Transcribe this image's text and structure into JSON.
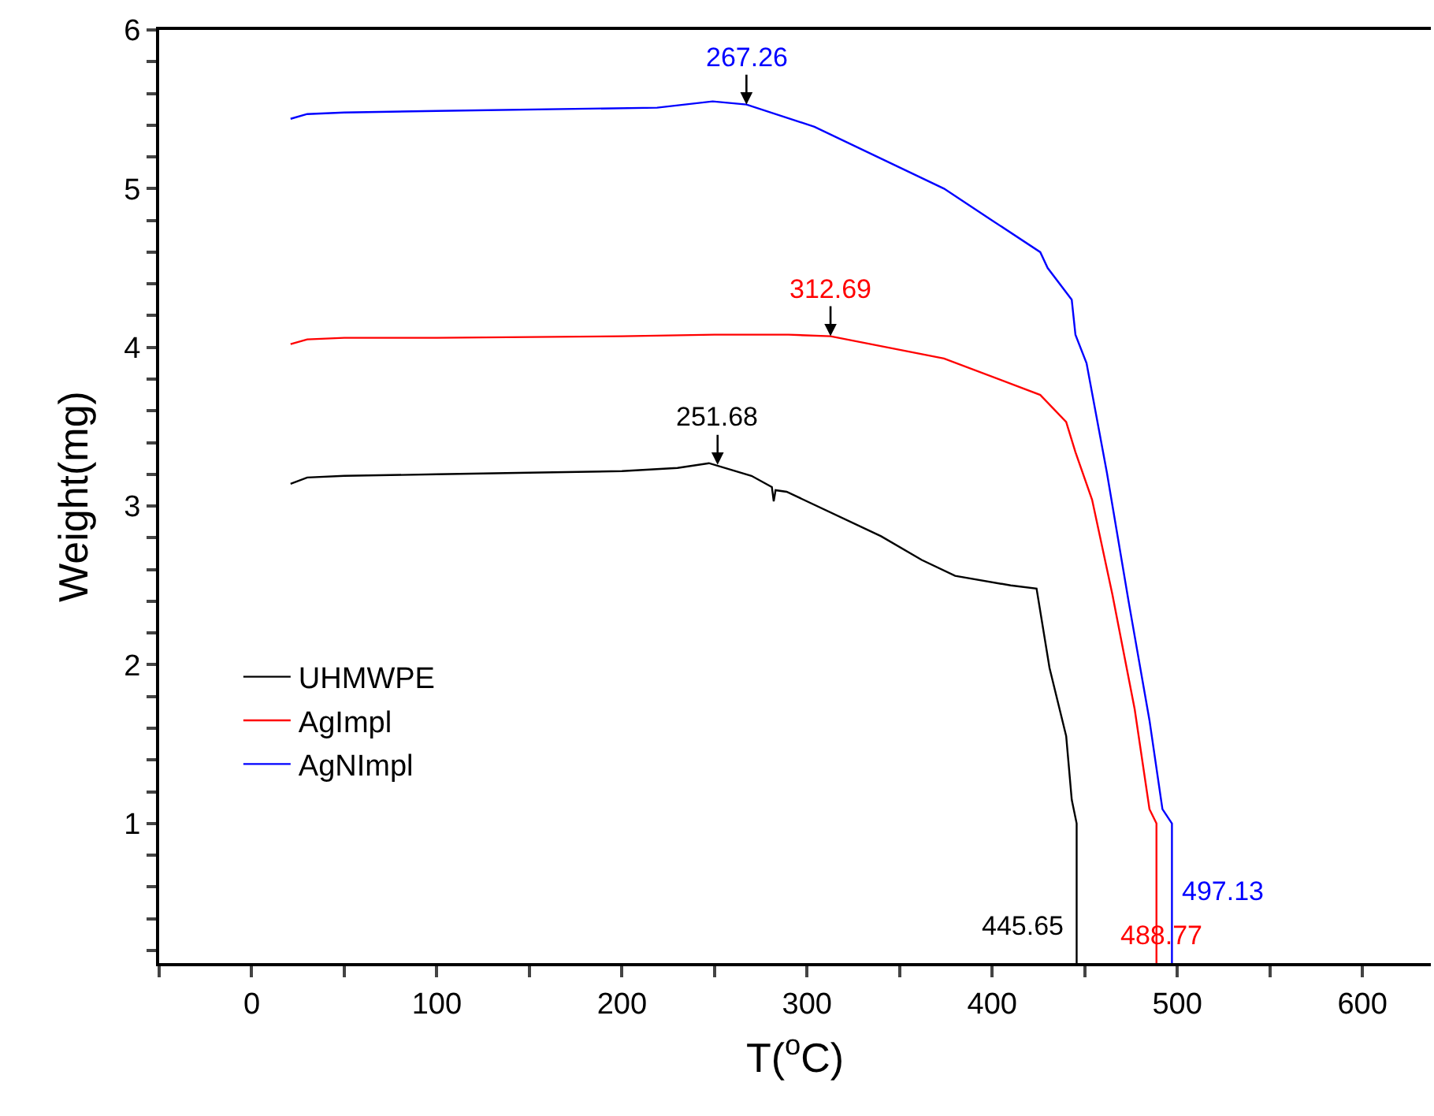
{
  "chart_data": {
    "type": "line",
    "xlabel": "T($^{o}$C)",
    "ylabel": "Weight(mg)",
    "xlim": [
      -50,
      637
    ],
    "ylim": [
      0.12,
      6
    ],
    "xticks": [
      {
        "value": -50,
        "label": null
      },
      0,
      {
        "value": 50,
        "label": null
      },
      100,
      {
        "value": 150,
        "label": null
      },
      200,
      {
        "value": 250,
        "label": null
      },
      300,
      {
        "value": 350,
        "label": null
      },
      400,
      {
        "value": 450,
        "label": null
      },
      500,
      {
        "value": 550,
        "label": null
      },
      600
    ],
    "yticks": [
      {
        "value": 0.2,
        "label": null
      },
      {
        "value": 0.4,
        "label": null
      },
      {
        "value": 0.6,
        "label": null
      },
      {
        "value": 0.8,
        "label": null
      },
      1,
      {
        "value": 1.2,
        "label": null
      },
      {
        "value": 1.4,
        "label": null
      },
      {
        "value": 1.6,
        "label": null
      },
      {
        "value": 1.8,
        "label": null
      },
      2,
      {
        "value": 2.2,
        "label": null
      },
      {
        "value": 2.4,
        "label": null
      },
      {
        "value": 2.6,
        "label": null
      },
      {
        "value": 2.8,
        "label": null
      },
      3,
      {
        "value": 3.2,
        "label": null
      },
      {
        "value": 3.4,
        "label": null
      },
      {
        "value": 3.6,
        "label": null
      },
      {
        "value": 3.8,
        "label": null
      },
      4,
      {
        "value": 4.2,
        "label": null
      },
      {
        "value": 4.4,
        "label": null
      },
      {
        "value": 4.6,
        "label": null
      },
      {
        "value": 4.8,
        "label": null
      },
      5,
      {
        "value": 5.2,
        "label": null
      },
      {
        "value": 5.4,
        "label": null
      },
      {
        "value": 5.6,
        "label": null
      },
      {
        "value": 5.8,
        "label": null
      },
      6
    ],
    "legend": "bottom left",
    "marker": "none",
    "line_style": "solid",
    "series": [
      {
        "name": "UHMWPE",
        "color": "#000000",
        "x": [
          21,
          30,
          50,
          100,
          150,
          200,
          230,
          247,
          270,
          281,
          282,
          283,
          289,
          340,
          362,
          380,
          410,
          424,
          431,
          440,
          443,
          445.65,
          445.65
        ],
        "values": [
          3.14,
          3.18,
          3.19,
          3.2,
          3.21,
          3.22,
          3.24,
          3.27,
          3.19,
          3.12,
          3.03,
          3.1,
          3.09,
          2.81,
          2.66,
          2.56,
          2.5,
          2.48,
          1.98,
          1.55,
          1.15,
          1.0,
          0.12
        ]
      },
      {
        "name": "AgImpl",
        "color": "#ff0000",
        "x": [
          21,
          30,
          50,
          100,
          200,
          250,
          290,
          312.69,
          374,
          426,
          440,
          445,
          454,
          465,
          477,
          485,
          488.77,
          488.77
        ],
        "values": [
          4.02,
          4.05,
          4.06,
          4.06,
          4.07,
          4.08,
          4.08,
          4.07,
          3.93,
          3.7,
          3.53,
          3.34,
          3.04,
          2.44,
          1.72,
          1.09,
          1.0,
          0.12
        ]
      },
      {
        "name": "AgNImpl",
        "color": "#0000ff",
        "x": [
          21,
          30,
          50,
          100,
          219,
          249,
          267.26,
          304,
          374,
          400,
          426,
          430,
          443,
          445,
          451,
          462,
          474,
          485,
          492,
          497.13,
          497.13
        ],
        "values": [
          5.44,
          5.47,
          5.48,
          5.49,
          5.51,
          5.55,
          5.53,
          5.39,
          5.0,
          4.8,
          4.6,
          4.5,
          4.3,
          4.08,
          3.9,
          3.21,
          2.38,
          1.65,
          1.09,
          1.0,
          0.12
        ]
      }
    ],
    "annotations": [
      {
        "text": "251.68",
        "x": 251.68,
        "y": 3.26
      },
      {
        "text": "312.69",
        "x": 312.69,
        "y": 4.07
      },
      {
        "text": "267.26",
        "x": 267.26,
        "y": 5.53
      },
      {
        "text": "445.65",
        "x": 445.65,
        "y": 0.12
      },
      {
        "text": "488.77",
        "x": 488.77,
        "y": 0.12
      },
      {
        "text": "497.13",
        "x": 497.13,
        "y": 0.12
      }
    ]
  }
}
